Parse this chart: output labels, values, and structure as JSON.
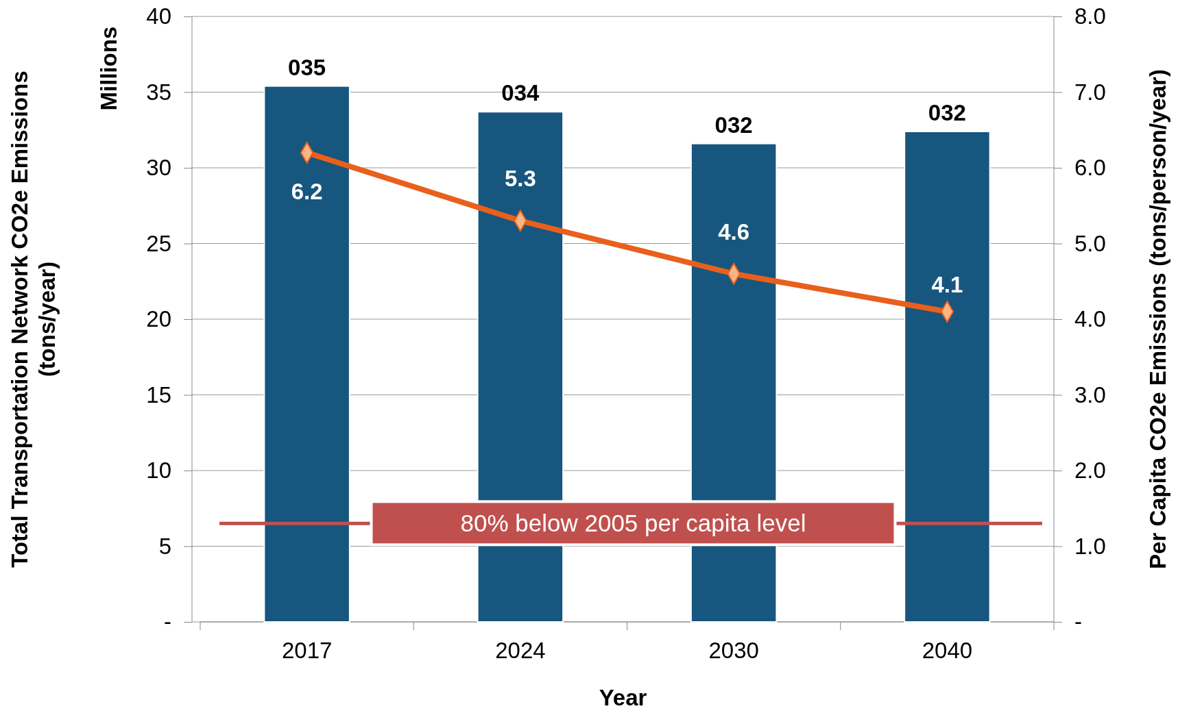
{
  "chart_data": {
    "type": "bar",
    "xlabel": "Year",
    "ylabel": "Total Transportation Network CO2e Emissions (tons/year)",
    "y2label": "Per Capita CO2e Emissions (tons/person/year)",
    "annotations": [
      "Millions"
    ],
    "categories": [
      "2017",
      "2024",
      "2030",
      "2040"
    ],
    "series": [
      {
        "color": "#17567f",
        "values": [
          35.4,
          33.7,
          31.6,
          32.4
        ],
        "value_labels": [
          "035",
          "034",
          "032",
          "032"
        ]
      },
      {
        "type": "line",
        "axis": "y2",
        "color": "#e8601c",
        "values": [
          6.2,
          5.3,
          4.6,
          4.1
        ],
        "value_labels": [
          "6.2",
          "5.3",
          "4.6",
          "4.1"
        ],
        "marker": "diamond"
      }
    ],
    "ylim": [
      0,
      40
    ],
    "yticks": [
      {
        "value": 0,
        "label": "-"
      },
      5,
      10,
      15,
      20,
      25,
      30,
      35,
      40
    ],
    "y2lim": [
      0,
      8
    ],
    "y2ticks": [
      {
        "value": 0,
        "label": "-"
      },
      {
        "value": 1,
        "label": "1.0"
      },
      {
        "value": 2,
        "label": "2.0"
      },
      {
        "value": 3,
        "label": "3.0"
      },
      {
        "value": 4,
        "label": "4.0"
      },
      {
        "value": 5,
        "label": "5.0"
      },
      {
        "value": 6,
        "label": "6.0"
      },
      {
        "value": 7,
        "label": "7.0"
      },
      {
        "value": 8,
        "label": "8.0"
      }
    ],
    "ref_lines": [
      {
        "axis": "y2",
        "value": 1.3,
        "label": "80% below 2005 per capita level",
        "color": "#c0504d"
      }
    ],
    "grid": "y"
  }
}
